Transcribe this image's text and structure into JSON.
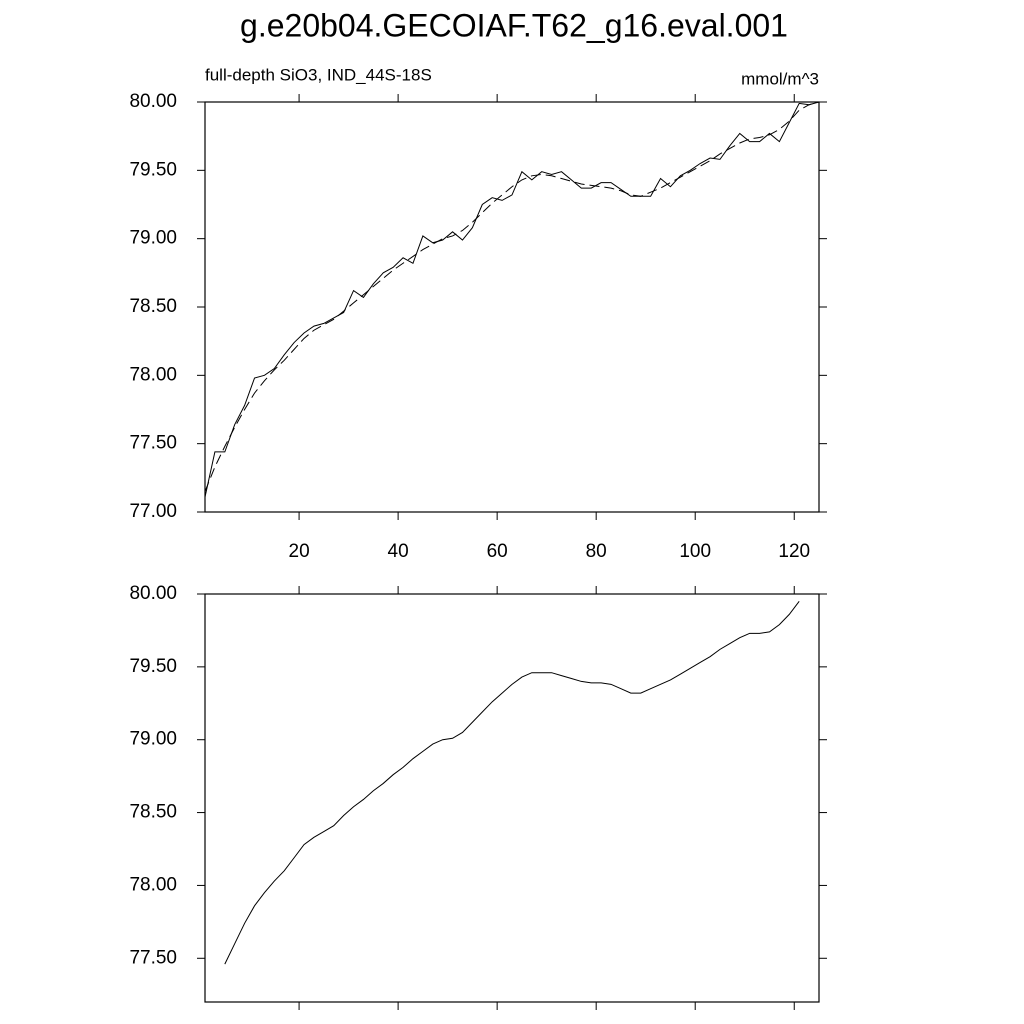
{
  "chart_data": [
    {
      "type": "line",
      "title": "g.e20b04.GECOIAF.T62_g16.eval.001",
      "subtitle": "full-depth SiO3, IND_44S-18S",
      "units": "mmol/m^3",
      "x": [
        1,
        3,
        5,
        7,
        9,
        11,
        13,
        15,
        17,
        19,
        21,
        23,
        25,
        27,
        29,
        31,
        33,
        35,
        37,
        39,
        41,
        43,
        45,
        47,
        49,
        51,
        53,
        55,
        57,
        59,
        61,
        63,
        65,
        67,
        69,
        71,
        73,
        75,
        77,
        79,
        81,
        83,
        85,
        87,
        89,
        91,
        93,
        95,
        97,
        99,
        101,
        103,
        105,
        107,
        109,
        111,
        113,
        115,
        117,
        119,
        121,
        123,
        125
      ],
      "series": [
        {
          "color": "#000000",
          "dash": false,
          "values": [
            77.11,
            77.44,
            77.44,
            77.64,
            77.78,
            77.98,
            78.0,
            78.05,
            78.15,
            78.24,
            78.31,
            78.36,
            78.38,
            78.42,
            78.46,
            78.62,
            78.57,
            78.67,
            78.75,
            78.79,
            78.86,
            78.82,
            79.02,
            78.97,
            78.99,
            79.05,
            78.99,
            79.08,
            79.25,
            79.3,
            79.28,
            79.32,
            79.49,
            79.43,
            79.49,
            79.47,
            79.49,
            79.43,
            79.37,
            79.37,
            79.41,
            79.41,
            79.36,
            79.31,
            79.31,
            79.31,
            79.44,
            79.38,
            79.46,
            79.5,
            79.55,
            79.59,
            79.58,
            79.68,
            79.77,
            79.71,
            79.71,
            79.77,
            79.71,
            79.85,
            79.99,
            79.98,
            80.0
          ]
        },
        {
          "color": "#000000",
          "dash": true,
          "values": [
            77.15,
            77.33,
            77.48,
            77.62,
            77.75,
            77.87,
            77.96,
            78.04,
            78.11,
            78.19,
            78.27,
            78.33,
            78.37,
            78.41,
            78.47,
            78.53,
            78.59,
            78.65,
            78.71,
            78.77,
            78.82,
            78.87,
            78.92,
            78.96,
            79.0,
            79.02,
            79.06,
            79.12,
            79.19,
            79.26,
            79.32,
            79.38,
            79.43,
            79.46,
            79.47,
            79.46,
            79.44,
            79.42,
            79.4,
            79.39,
            79.38,
            79.37,
            79.35,
            79.32,
            79.31,
            79.34,
            79.37,
            79.41,
            79.45,
            79.49,
            79.53,
            79.57,
            79.62,
            79.66,
            79.7,
            79.73,
            79.74,
            79.76,
            79.8,
            79.86,
            79.94,
            79.98,
            80.0
          ]
        }
      ],
      "xlim": [
        1,
        125
      ],
      "xticks": [
        20,
        40,
        60,
        80,
        100,
        120
      ],
      "ylim": [
        77,
        80
      ],
      "yticks": [
        {
          "value": 77,
          "label": "77.00"
        },
        {
          "value": 77.5,
          "label": "77.50"
        },
        {
          "value": 78,
          "label": "78.00"
        },
        {
          "value": 78.5,
          "label": "78.50"
        },
        {
          "value": 79,
          "label": "79.00"
        },
        {
          "value": 79.5,
          "label": "79.50"
        },
        {
          "value": 80,
          "label": "80.00"
        }
      ]
    },
    {
      "type": "line",
      "x": [
        5,
        7,
        9,
        11,
        13,
        15,
        17,
        19,
        21,
        23,
        25,
        27,
        29,
        31,
        33,
        35,
        37,
        39,
        41,
        43,
        45,
        47,
        49,
        51,
        53,
        55,
        57,
        59,
        61,
        63,
        65,
        67,
        69,
        71,
        73,
        75,
        77,
        79,
        81,
        83,
        85,
        87,
        89,
        91,
        93,
        95,
        97,
        99,
        101,
        103,
        105,
        107,
        109,
        111,
        113,
        115,
        117,
        119,
        121
      ],
      "series": [
        {
          "color": "#000000",
          "dash": false,
          "values": [
            77.46,
            77.6,
            77.74,
            77.86,
            77.95,
            78.03,
            78.1,
            78.19,
            78.28,
            78.33,
            78.37,
            78.41,
            78.48,
            78.54,
            78.59,
            78.65,
            78.7,
            78.76,
            78.81,
            78.87,
            78.92,
            78.97,
            79.0,
            79.01,
            79.05,
            79.12,
            79.19,
            79.26,
            79.32,
            79.38,
            79.43,
            79.46,
            79.46,
            79.46,
            79.44,
            79.42,
            79.4,
            79.39,
            79.39,
            79.38,
            79.35,
            79.32,
            79.32,
            79.35,
            79.38,
            79.41,
            79.45,
            79.49,
            79.53,
            79.57,
            79.62,
            79.66,
            79.7,
            79.73,
            79.73,
            79.74,
            79.79,
            79.86,
            79.95
          ]
        }
      ],
      "xlim": [
        1,
        125
      ],
      "xticks": [
        20,
        40,
        60,
        80,
        100,
        120
      ],
      "ylim": [
        77.2,
        80
      ],
      "yticks": [
        {
          "value": 77.5,
          "label": "77.50"
        },
        {
          "value": 78,
          "label": "78.00"
        },
        {
          "value": 78.5,
          "label": "78.50"
        },
        {
          "value": 79,
          "label": "79.00"
        },
        {
          "value": 79.5,
          "label": "79.50"
        },
        {
          "value": 80,
          "label": "80.00"
        }
      ]
    }
  ]
}
